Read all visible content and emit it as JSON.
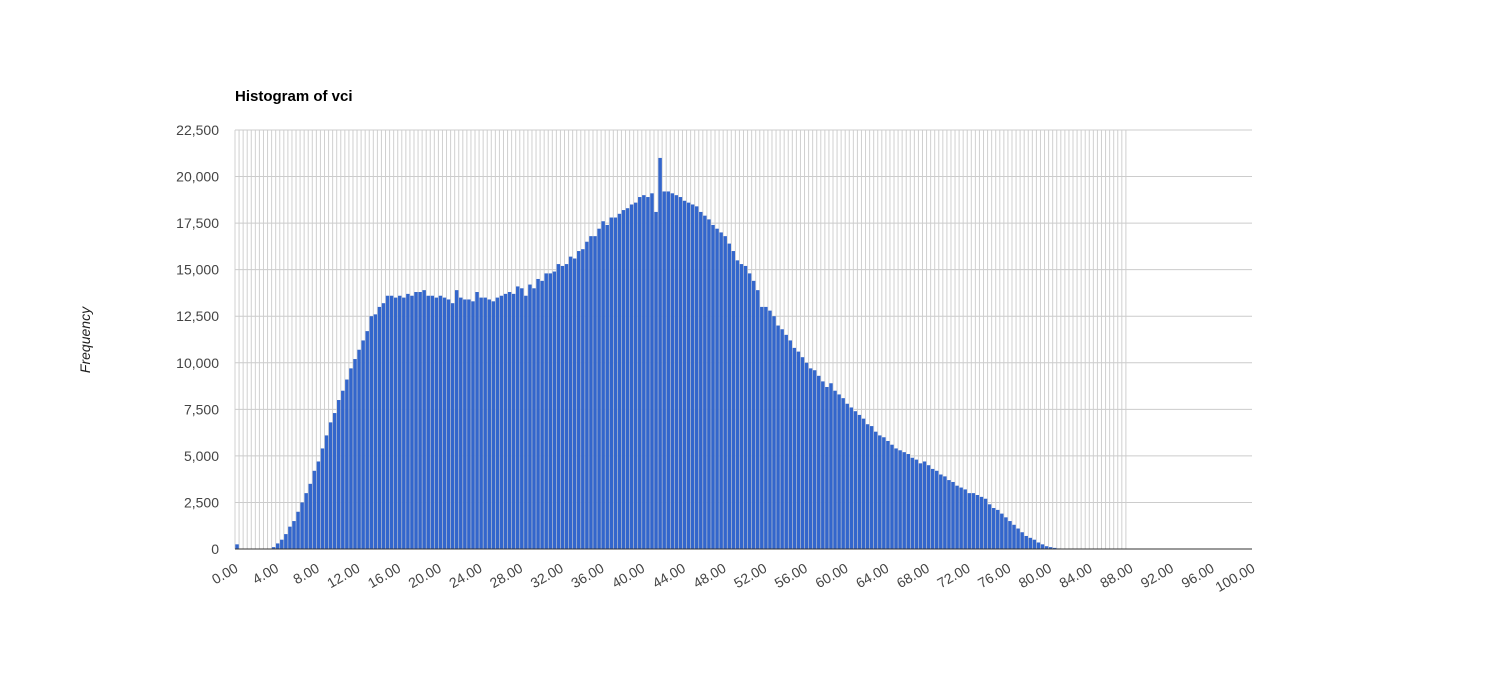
{
  "chart_data": {
    "type": "bar",
    "title": "Histogram of vci",
    "xlabel": "",
    "ylabel": "Frequency",
    "bin_width": 0.4,
    "xlim": [
      0,
      100
    ],
    "ylim": [
      0,
      22500
    ],
    "grid": true,
    "legend": "none",
    "bar_color": "#3366cc",
    "x_ticks": [
      "0.00",
      "4.00",
      "8.00",
      "12.00",
      "16.00",
      "20.00",
      "24.00",
      "28.00",
      "32.00",
      "36.00",
      "40.00",
      "44.00",
      "48.00",
      "52.00",
      "56.00",
      "60.00",
      "64.00",
      "68.00",
      "72.00",
      "76.00",
      "80.00",
      "84.00",
      "88.00",
      "92.00",
      "96.00",
      "100.00"
    ],
    "y_ticks": [
      "0",
      "2,500",
      "5,000",
      "7,500",
      "10,000",
      "12,500",
      "15,000",
      "17,500",
      "20,000",
      "22,500"
    ],
    "values": [
      250,
      0,
      0,
      0,
      0,
      0,
      0,
      0,
      20,
      100,
      300,
      500,
      800,
      1200,
      1500,
      2000,
      2500,
      3000,
      3500,
      4200,
      4700,
      5400,
      6100,
      6800,
      7300,
      8000,
      8500,
      9100,
      9700,
      10200,
      10700,
      11200,
      11700,
      12500,
      12600,
      13000,
      13200,
      13600,
      13600,
      13500,
      13600,
      13500,
      13700,
      13600,
      13800,
      13800,
      13900,
      13600,
      13600,
      13500,
      13600,
      13500,
      13400,
      13200,
      13900,
      13500,
      13400,
      13400,
      13300,
      13800,
      13500,
      13500,
      13400,
      13300,
      13500,
      13600,
      13700,
      13800,
      13700,
      14100,
      14000,
      13600,
      14200,
      14000,
      14500,
      14400,
      14800,
      14800,
      14900,
      15300,
      15200,
      15300,
      15700,
      15600,
      16000,
      16100,
      16500,
      16800,
      16800,
      17200,
      17600,
      17400,
      17800,
      17800,
      18000,
      18200,
      18300,
      18500,
      18600,
      18900,
      19000,
      18900,
      19100,
      18100,
      21000,
      19200,
      19200,
      19100,
      19000,
      18900,
      18700,
      18600,
      18500,
      18400,
      18100,
      17900,
      17700,
      17400,
      17200,
      17000,
      16800,
      16400,
      16000,
      15500,
      15300,
      15200,
      14800,
      14400,
      13900,
      13000,
      13000,
      12800,
      12500,
      12000,
      11800,
      11500,
      11200,
      10800,
      10600,
      10300,
      10000,
      9700,
      9600,
      9300,
      9000,
      8700,
      8900,
      8500,
      8300,
      8100,
      7800,
      7600,
      7400,
      7200,
      7000,
      6700,
      6600,
      6300,
      6100,
      6000,
      5800,
      5600,
      5400,
      5300,
      5200,
      5100,
      4900,
      4800,
      4600,
      4700,
      4500,
      4300,
      4200,
      4000,
      3900,
      3700,
      3600,
      3400,
      3300,
      3200,
      3000,
      3000,
      2900,
      2800,
      2700,
      2400,
      2200,
      2100,
      1900,
      1700,
      1500,
      1300,
      1100,
      900,
      700,
      600,
      500,
      350,
      250,
      150,
      100,
      60,
      30,
      20,
      10,
      5,
      5,
      5,
      0,
      0,
      0,
      0,
      0,
      0,
      0,
      0,
      0,
      0,
      0
    ]
  }
}
